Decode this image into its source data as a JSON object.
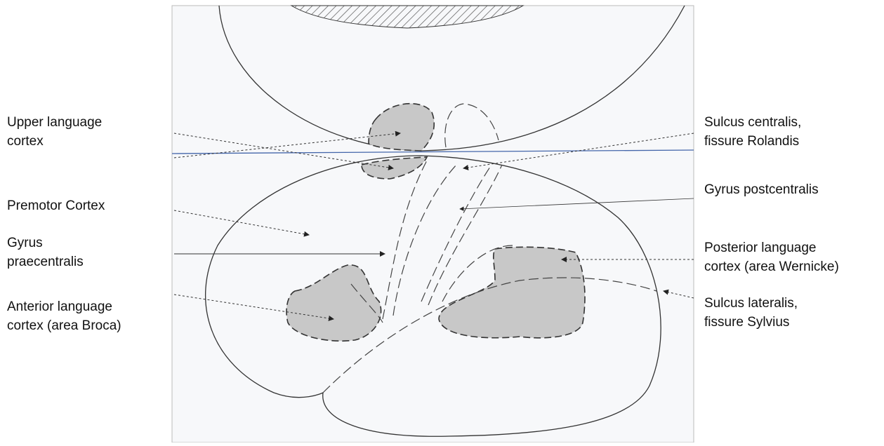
{
  "annotations_left": [
    {
      "lines": [
        "Upper language",
        "cortex"
      ]
    },
    {
      "lines": [
        "Premotor Cortex"
      ]
    },
    {
      "lines": [
        "Gyrus",
        "praecentralis"
      ]
    },
    {
      "lines": [
        "Anterior language",
        "cortex (area Broca)"
      ]
    }
  ],
  "annotations_right": [
    {
      "lines": [
        "Sulcus centralis,",
        "fissure Rolandis"
      ]
    },
    {
      "lines": [
        "Gyrus postcentralis"
      ]
    },
    {
      "lines": [
        "Posterior language",
        "cortex (area Wernicke)"
      ]
    },
    {
      "lines": [
        "Sulcus lateralis,",
        "fissure Sylvius"
      ]
    }
  ]
}
